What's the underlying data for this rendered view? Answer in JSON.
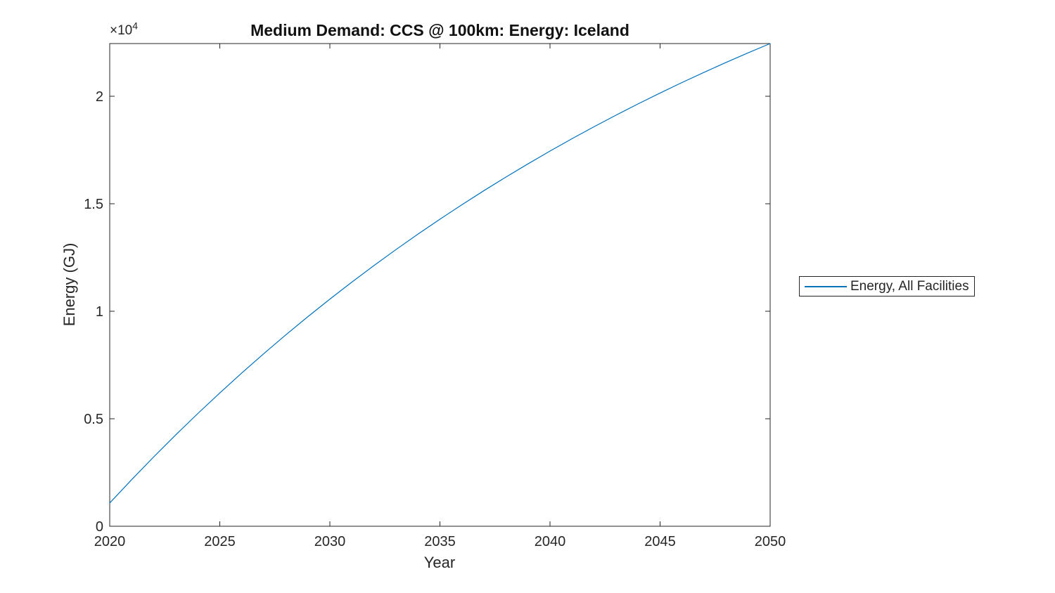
{
  "chart_data": {
    "type": "line",
    "title": "Medium Demand: CCS @ 100km: Energy: Iceland",
    "xlabel": "Year",
    "ylabel": "Energy (GJ)",
    "y_scale_label": {
      "base": "×10",
      "exponent": "4"
    },
    "xlim": [
      2020,
      2050
    ],
    "ylim": [
      0,
      22460
    ],
    "grid": false,
    "axis_color": "#262626",
    "background": "#ffffff",
    "xticks": {
      "values": [
        2020,
        2025,
        2030,
        2035,
        2040,
        2045,
        2050
      ],
      "labels": [
        "2020",
        "2025",
        "2030",
        "2035",
        "2040",
        "2045",
        "2050"
      ]
    },
    "yticks": {
      "values": [
        0,
        5000,
        10000,
        15000,
        20000
      ],
      "labels": [
        "0",
        "0.5",
        "1",
        "1.5",
        "2"
      ]
    },
    "x": [
      2020,
      2021,
      2022,
      2023,
      2024,
      2025,
      2026,
      2027,
      2028,
      2029,
      2030,
      2031,
      2032,
      2033,
      2034,
      2035,
      2036,
      2037,
      2038,
      2039,
      2040,
      2041,
      2042,
      2043,
      2044,
      2045,
      2046,
      2047,
      2048,
      2049,
      2050
    ],
    "series": [
      {
        "name": "Energy, All Facilities",
        "color": "#0072BD",
        "values": [
          1080,
          2171,
          3228,
          4252,
          5243,
          6203,
          7133,
          8033,
          8906,
          9750,
          10568,
          11360,
          12128,
          12871,
          13591,
          14288,
          14963,
          15617,
          16250,
          16863,
          17457,
          18033,
          18590,
          19130,
          19652,
          20158,
          20649,
          21123,
          21583,
          22029,
          22460
        ]
      }
    ],
    "legend": {
      "position": "right-outside",
      "entries": [
        "Energy, All Facilities"
      ]
    }
  }
}
